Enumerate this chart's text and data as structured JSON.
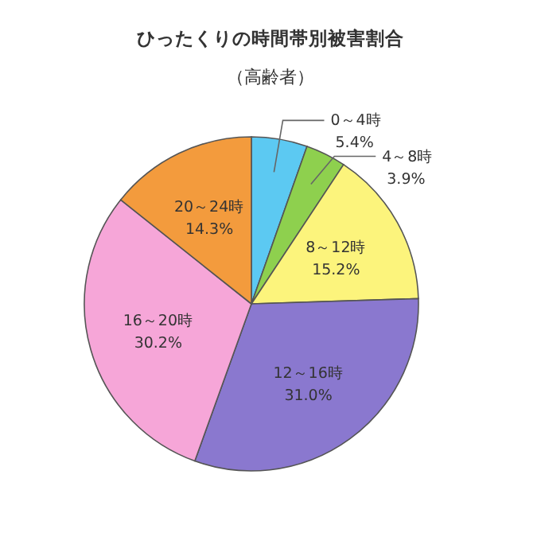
{
  "chart_data": {
    "type": "pie",
    "title": "ひったくりの時間帯別被害割合",
    "subtitle": "（高齢者）",
    "categories": [
      "0～4時",
      "4～8時",
      "8～12時",
      "12～16時",
      "16～20時",
      "20～24時"
    ],
    "values": [
      5.4,
      3.9,
      15.2,
      31.0,
      30.2,
      14.3
    ],
    "value_labels": [
      "5.4%",
      "3.9%",
      "15.2%",
      "31.0%",
      "30.2%",
      "14.3%"
    ],
    "colors": [
      "#5cc9f2",
      "#8ed04e",
      "#fcf47c",
      "#8a78cf",
      "#f6a6d8",
      "#f39b3d"
    ]
  }
}
